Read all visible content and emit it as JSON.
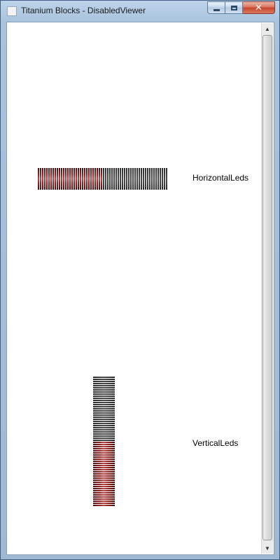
{
  "window": {
    "title": "Titanium Blocks - DisabledViewer",
    "buttons": {
      "minimize": "minimize",
      "maximize": "maximize",
      "close": "close"
    }
  },
  "controls": {
    "horizontal": {
      "label": "HorizontalLeds",
      "led_count": 62,
      "lit_count": 31,
      "lit_fraction": 0.5
    },
    "vertical": {
      "label": "VerticalLeds",
      "led_count": 62,
      "lit_count": 31,
      "lit_fraction": 0.5
    }
  },
  "colors": {
    "led_on": "#8f1f1f",
    "led_off": "#3a3a3a",
    "client_background": "#ffffff"
  },
  "icons": {
    "scroll_up": "scroll-up-arrow-icon",
    "scroll_down": "scroll-down-arrow-icon",
    "app": "app-icon"
  }
}
